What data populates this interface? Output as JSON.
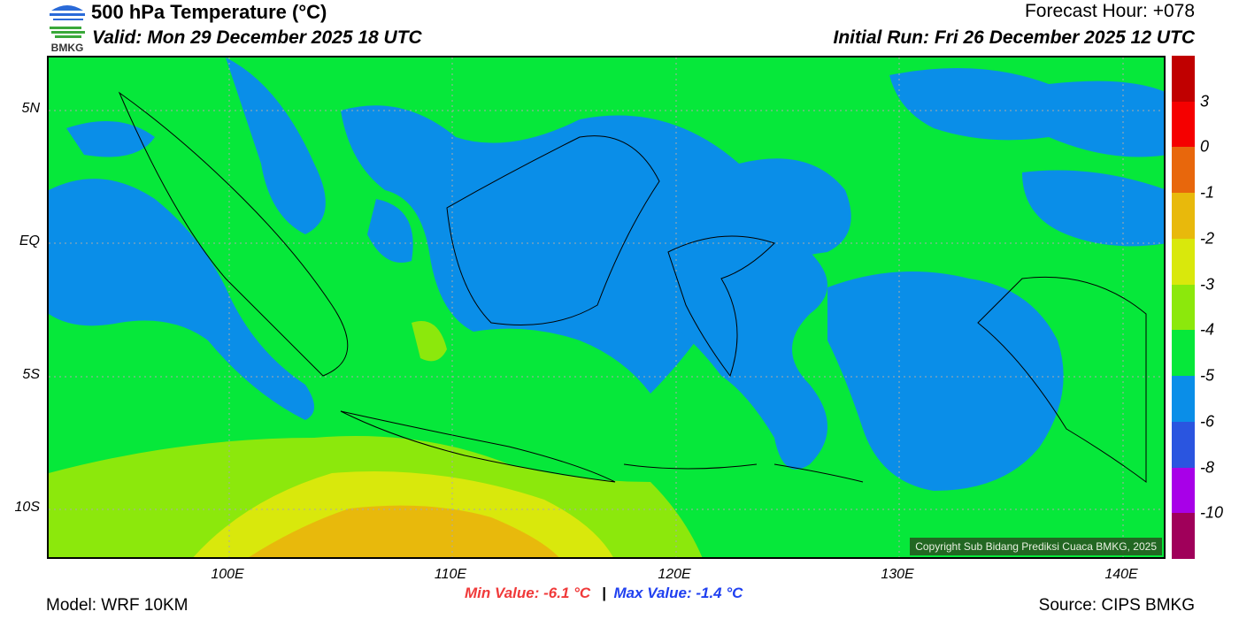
{
  "header": {
    "logo_text": "BMKG",
    "title": "500 hPa Temperature (°C)",
    "valid": "Valid: Mon 29 December 2025 18 UTC",
    "forecast_hour": "Forecast Hour: +078",
    "initial_run": "Initial Run: Fri 26 December 2025 12 UTC"
  },
  "map": {
    "lat_labels": [
      "5N",
      "EQ",
      "5S",
      "10S"
    ],
    "lon_labels": [
      "100E",
      "110E",
      "120E",
      "130E",
      "140E"
    ],
    "copyright": "Copyright Sub Bidang Prediksi Cuaca BMKG, 2025"
  },
  "colorbar": {
    "colors": [
      "#c00000",
      "#f50000",
      "#e8670c",
      "#e8b90c",
      "#d9e80c",
      "#8ce80c",
      "#06e83a",
      "#0a8ee8",
      "#2a55e0",
      "#a800e8",
      "#a0005a"
    ],
    "labels": [
      "3",
      "0",
      "-1",
      "-2",
      "-3",
      "-4",
      "-5",
      "-6",
      "-8",
      "-10"
    ]
  },
  "stats": {
    "min": "Min Value: -6.1 °C",
    "sep": "|",
    "max": "Max Value: -1.4 °C"
  },
  "footer": {
    "model": "Model: WRF 10KM",
    "source": "Source: CIPS BMKG"
  }
}
